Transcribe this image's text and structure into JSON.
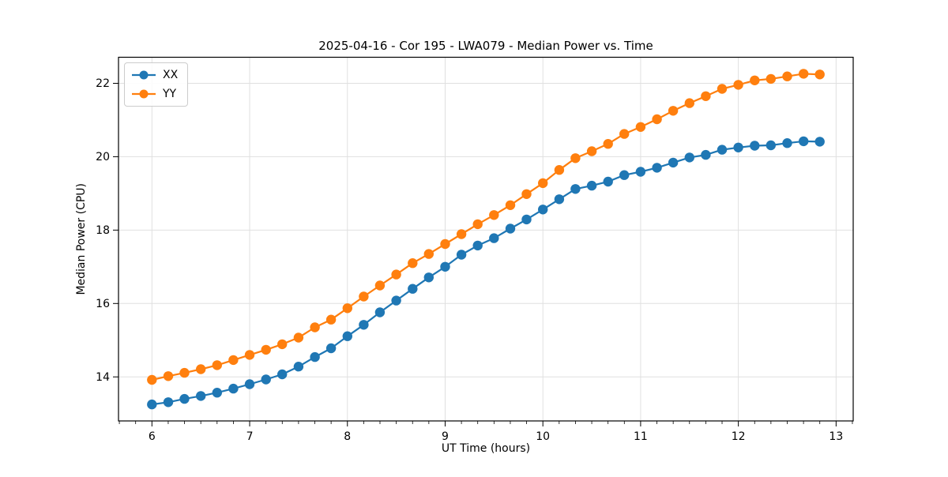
{
  "figure": {
    "background": "#ffffff"
  },
  "chart_data": {
    "type": "line",
    "title": "2025-04-16 - Cor 195 - LWA079 - Median Power vs. Time",
    "xlabel": "UT Time (hours)",
    "ylabel": "Median Power (CPU)",
    "xlim": [
      5.658,
      13.175
    ],
    "ylim": [
      12.8,
      22.71
    ],
    "xticks": [
      6,
      7,
      8,
      9,
      10,
      11,
      12,
      13
    ],
    "yticks": [
      14,
      16,
      18,
      20,
      22
    ],
    "x_minor_ticks_per_hour": 6,
    "grid": true,
    "legend": {
      "position": "upper-left"
    },
    "x": [
      6.0,
      6.167,
      6.333,
      6.5,
      6.667,
      6.833,
      7.0,
      7.167,
      7.333,
      7.5,
      7.667,
      7.833,
      8.0,
      8.167,
      8.333,
      8.5,
      8.667,
      8.833,
      9.0,
      9.167,
      9.333,
      9.5,
      9.667,
      9.833,
      10.0,
      10.167,
      10.333,
      10.5,
      10.667,
      10.833,
      11.0,
      11.167,
      11.333,
      11.5,
      11.667,
      11.833,
      12.0,
      12.167,
      12.333,
      12.5,
      12.667,
      12.833
    ],
    "series": [
      {
        "name": "XX",
        "color": "#1f77b4",
        "values": [
          13.25,
          13.31,
          13.4,
          13.48,
          13.57,
          13.68,
          13.8,
          13.93,
          14.07,
          14.28,
          14.54,
          14.78,
          15.11,
          15.42,
          15.76,
          16.08,
          16.4,
          16.71,
          17.0,
          17.33,
          17.58,
          17.78,
          18.04,
          18.29,
          18.56,
          18.84,
          19.12,
          19.21,
          19.32,
          19.5,
          19.59,
          19.7,
          19.84,
          19.98,
          20.05,
          20.19,
          20.25,
          20.3,
          20.31,
          20.37,
          20.42,
          20.41
        ]
      },
      {
        "name": "YY",
        "color": "#ff7f0e",
        "values": [
          13.92,
          14.02,
          14.11,
          14.21,
          14.32,
          14.46,
          14.6,
          14.74,
          14.89,
          15.07,
          15.35,
          15.56,
          15.87,
          16.19,
          16.49,
          16.79,
          17.1,
          17.35,
          17.62,
          17.89,
          18.16,
          18.41,
          18.68,
          18.98,
          19.28,
          19.64,
          19.96,
          20.15,
          20.35,
          20.62,
          20.81,
          21.02,
          21.25,
          21.46,
          21.65,
          21.85,
          21.96,
          22.08,
          22.12,
          22.19,
          22.26,
          22.24
        ]
      }
    ]
  }
}
